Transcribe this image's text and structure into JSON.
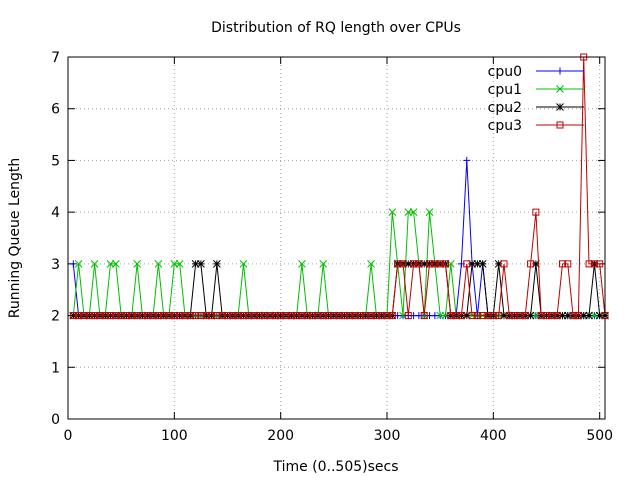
{
  "chart_data": {
    "type": "line",
    "title": "Distribution of RQ length over CPUs",
    "xlabel": "Time (0..505)secs",
    "ylabel": "Running Queue Length",
    "xlim": [
      0,
      505
    ],
    "ylim": [
      0,
      7
    ],
    "xticks": [
      0,
      100,
      200,
      300,
      400,
      500
    ],
    "yticks": [
      0,
      1,
      2,
      3,
      4,
      5,
      6,
      7
    ],
    "grid": true,
    "legend_position": "top-right",
    "series": [
      {
        "name": "cpu0",
        "color": "#0000ff",
        "marker": "plus",
        "x": [
          5,
          10,
          15,
          20,
          25,
          30,
          35,
          40,
          45,
          50,
          55,
          60,
          65,
          70,
          75,
          80,
          85,
          90,
          95,
          100,
          105,
          110,
          115,
          120,
          125,
          130,
          135,
          140,
          145,
          150,
          155,
          160,
          165,
          170,
          175,
          180,
          185,
          190,
          195,
          200,
          205,
          210,
          215,
          220,
          225,
          230,
          235,
          240,
          245,
          250,
          255,
          260,
          265,
          270,
          275,
          280,
          285,
          290,
          295,
          300,
          305,
          310,
          315,
          320,
          325,
          330,
          335,
          340,
          345,
          350,
          355,
          360,
          365,
          370,
          375,
          380,
          385,
          390,
          395,
          400,
          405,
          410,
          415,
          420,
          425,
          430,
          435,
          440,
          445,
          450,
          455,
          460,
          465,
          470,
          475,
          480,
          485,
          490,
          495,
          500,
          505
        ],
        "y": [
          3,
          2,
          2,
          2,
          2,
          2,
          2,
          2,
          2,
          2,
          2,
          2,
          2,
          2,
          2,
          2,
          2,
          2,
          2,
          2,
          2,
          2,
          2,
          2,
          2,
          2,
          2,
          2,
          2,
          2,
          2,
          2,
          2,
          2,
          2,
          2,
          2,
          2,
          2,
          2,
          2,
          2,
          2,
          2,
          2,
          2,
          2,
          2,
          2,
          2,
          2,
          2,
          2,
          2,
          2,
          2,
          2,
          2,
          2,
          2,
          2,
          2,
          2,
          2,
          2,
          2,
          2,
          2,
          2,
          2,
          2,
          2,
          2,
          3,
          5,
          3,
          2,
          3,
          2,
          2,
          2,
          2,
          2,
          2,
          2,
          2,
          2,
          2,
          2,
          2,
          2,
          2,
          2,
          2,
          2,
          2,
          2,
          2,
          2,
          2,
          2
        ]
      },
      {
        "name": "cpu1",
        "color": "#00c000",
        "marker": "cross",
        "x": [
          5,
          10,
          15,
          20,
          25,
          30,
          35,
          40,
          45,
          50,
          55,
          60,
          65,
          70,
          75,
          80,
          85,
          90,
          95,
          100,
          105,
          110,
          115,
          120,
          125,
          130,
          135,
          140,
          145,
          150,
          155,
          160,
          165,
          170,
          175,
          180,
          185,
          190,
          195,
          200,
          205,
          210,
          215,
          220,
          225,
          230,
          235,
          240,
          245,
          250,
          255,
          260,
          265,
          270,
          275,
          280,
          285,
          290,
          295,
          300,
          305,
          310,
          315,
          320,
          325,
          330,
          335,
          340,
          345,
          350,
          355,
          360,
          365,
          370,
          375,
          380,
          385,
          390,
          395,
          400,
          405,
          410,
          415,
          420,
          425,
          430,
          435,
          440,
          445,
          450,
          455,
          460,
          465,
          470,
          475,
          480,
          485,
          490,
          495,
          500,
          505
        ],
        "y": [
          2,
          3,
          2,
          2,
          3,
          2,
          2,
          3,
          3,
          2,
          2,
          2,
          3,
          2,
          2,
          2,
          3,
          2,
          2,
          3,
          3,
          2,
          2,
          2,
          2,
          2,
          2,
          2,
          2,
          2,
          2,
          2,
          3,
          2,
          2,
          2,
          2,
          2,
          2,
          2,
          2,
          2,
          2,
          3,
          2,
          2,
          2,
          3,
          2,
          2,
          2,
          2,
          2,
          2,
          2,
          2,
          3,
          2,
          2,
          2,
          4,
          3,
          2,
          4,
          4,
          3,
          2,
          4,
          3,
          2,
          2,
          3,
          2,
          2,
          2,
          2,
          2,
          2,
          2,
          2,
          2,
          2,
          2,
          2,
          2,
          2,
          2,
          2,
          2,
          2,
          2,
          2,
          2,
          2,
          2,
          2,
          2,
          2,
          2,
          2,
          2
        ]
      },
      {
        "name": "cpu2",
        "color": "#000000",
        "marker": "star",
        "x": [
          5,
          10,
          15,
          20,
          25,
          30,
          35,
          40,
          45,
          50,
          55,
          60,
          65,
          70,
          75,
          80,
          85,
          90,
          95,
          100,
          105,
          110,
          115,
          120,
          125,
          130,
          135,
          140,
          145,
          150,
          155,
          160,
          165,
          170,
          175,
          180,
          185,
          190,
          195,
          200,
          205,
          210,
          215,
          220,
          225,
          230,
          235,
          240,
          245,
          250,
          255,
          260,
          265,
          270,
          275,
          280,
          285,
          290,
          295,
          300,
          305,
          310,
          315,
          320,
          325,
          330,
          335,
          340,
          345,
          350,
          355,
          360,
          365,
          370,
          375,
          380,
          385,
          390,
          395,
          400,
          405,
          410,
          415,
          420,
          425,
          430,
          435,
          440,
          445,
          450,
          455,
          460,
          465,
          470,
          475,
          480,
          485,
          490,
          495,
          500,
          505
        ],
        "y": [
          2,
          2,
          2,
          2,
          2,
          2,
          2,
          2,
          2,
          2,
          2,
          2,
          2,
          2,
          2,
          2,
          2,
          2,
          2,
          2,
          2,
          2,
          2,
          3,
          3,
          2,
          2,
          3,
          2,
          2,
          2,
          2,
          2,
          2,
          2,
          2,
          2,
          2,
          2,
          2,
          2,
          2,
          2,
          2,
          2,
          2,
          2,
          2,
          2,
          2,
          2,
          2,
          2,
          2,
          2,
          2,
          2,
          2,
          2,
          2,
          2,
          3,
          3,
          3,
          3,
          3,
          3,
          3,
          3,
          3,
          3,
          2,
          2,
          2,
          2,
          3,
          3,
          3,
          2,
          2,
          3,
          2,
          2,
          2,
          2,
          2,
          2,
          3,
          2,
          2,
          2,
          2,
          2,
          2,
          2,
          2,
          2,
          2,
          3,
          2,
          2
        ]
      },
      {
        "name": "cpu3",
        "color": "#c00000",
        "marker": "square",
        "x": [
          5,
          10,
          15,
          20,
          25,
          30,
          35,
          40,
          45,
          50,
          55,
          60,
          65,
          70,
          75,
          80,
          85,
          90,
          95,
          100,
          105,
          110,
          115,
          120,
          125,
          130,
          135,
          140,
          145,
          150,
          155,
          160,
          165,
          170,
          175,
          180,
          185,
          190,
          195,
          200,
          205,
          210,
          215,
          220,
          225,
          230,
          235,
          240,
          245,
          250,
          255,
          260,
          265,
          270,
          275,
          280,
          285,
          290,
          295,
          300,
          305,
          310,
          315,
          320,
          325,
          330,
          335,
          340,
          345,
          350,
          355,
          360,
          365,
          370,
          375,
          380,
          385,
          390,
          395,
          400,
          405,
          410,
          415,
          420,
          425,
          430,
          435,
          440,
          445,
          450,
          455,
          460,
          465,
          470,
          475,
          480,
          485,
          490,
          495,
          500,
          505
        ],
        "y": [
          2,
          2,
          2,
          2,
          2,
          2,
          2,
          2,
          2,
          2,
          2,
          2,
          2,
          2,
          2,
          2,
          2,
          2,
          2,
          2,
          2,
          2,
          2,
          2,
          2,
          2,
          2,
          2,
          2,
          2,
          2,
          2,
          2,
          2,
          2,
          2,
          2,
          2,
          2,
          2,
          2,
          2,
          2,
          2,
          2,
          2,
          2,
          2,
          2,
          2,
          2,
          2,
          2,
          2,
          2,
          2,
          2,
          2,
          2,
          2,
          2,
          3,
          3,
          2,
          3,
          3,
          2,
          3,
          3,
          3,
          3,
          2,
          2,
          2,
          3,
          2,
          2,
          2,
          2,
          2,
          2,
          3,
          2,
          2,
          2,
          2,
          3,
          4,
          2,
          2,
          2,
          2,
          3,
          3,
          2,
          2,
          7,
          3,
          3,
          3,
          2
        ]
      }
    ]
  }
}
